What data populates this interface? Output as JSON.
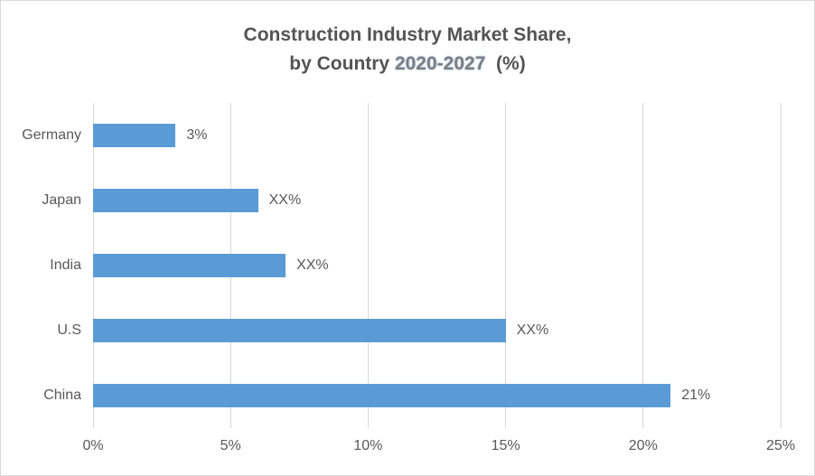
{
  "chart_data": {
    "type": "bar",
    "orientation": "horizontal",
    "title": {
      "line1": "Construction Industry Market Share,",
      "line2_prefix": "by Country ",
      "line2_highlight": "2020-2027",
      "line2_suffix": "  (%)"
    },
    "categories": [
      "Germany",
      "Japan",
      "India",
      "U.S",
      "China"
    ],
    "values": [
      3,
      6,
      7,
      15,
      21
    ],
    "data_labels": [
      "3%",
      "XX%",
      "XX%",
      "XX%",
      "21%"
    ],
    "xlim": [
      0,
      25
    ],
    "xticks": [
      0,
      5,
      10,
      15,
      20,
      25
    ],
    "xtick_labels": [
      "0%",
      "5%",
      "10%",
      "15%",
      "20%",
      "25%"
    ],
    "grid": true,
    "legend": false,
    "colors": {
      "bar": "#5B9BD5",
      "gridline": "#D9D9D9",
      "axis_text": "#595959",
      "title_text": "#545454",
      "title_highlight_text": "#7F7F7F",
      "title_highlight_glow": "#9DC3E6",
      "chart_border": "#D9D9D9",
      "background": "#FFFFFF"
    }
  }
}
